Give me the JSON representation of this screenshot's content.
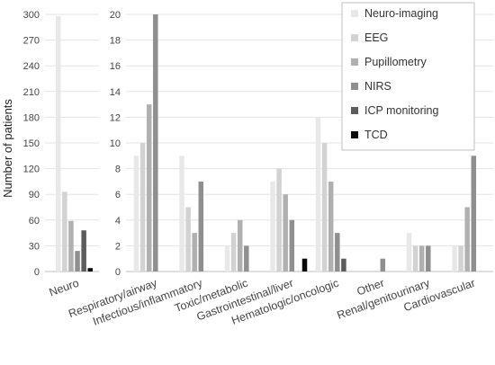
{
  "chart_data": {
    "type": "bar",
    "ylabel": "Number of patients",
    "xlabel": "",
    "title": "",
    "grid": "horizontal",
    "legend_position": "top-right",
    "series": [
      {
        "name": "Neuro-imaging",
        "color": "#e8e8e8"
      },
      {
        "name": "EEG",
        "color": "#d2d2d2"
      },
      {
        "name": "Pupillometry",
        "color": "#b0b0b0"
      },
      {
        "name": "NIRS",
        "color": "#8f8f8f"
      },
      {
        "name": "ICP monitoring",
        "color": "#5c5c5c"
      },
      {
        "name": "TCD",
        "color": "#0a0a0a"
      }
    ],
    "panels": [
      {
        "ylim": [
          0,
          300
        ],
        "yticks": [
          0,
          30,
          60,
          90,
          120,
          150,
          180,
          210,
          240,
          270,
          300
        ],
        "categories": [
          "Neuro"
        ],
        "values": [
          [
            298,
            93,
            59,
            24,
            48,
            4
          ]
        ]
      },
      {
        "ylim": [
          0,
          20
        ],
        "yticks": [
          0,
          2,
          4,
          6,
          8,
          10,
          12,
          14,
          16,
          18,
          20
        ],
        "categories": [
          "Respiratory/airway",
          "Infectious/inflammatory",
          "Toxic/metabolic",
          "Gastrointestinal/liver",
          "Hematologic/oncologic",
          "Other",
          "Renal/genitourinary",
          "Cardiovascular"
        ],
        "values": [
          [
            9,
            10,
            13,
            20,
            0,
            0
          ],
          [
            9,
            5,
            3,
            7,
            0,
            0
          ],
          [
            2,
            3,
            4,
            2,
            0,
            0
          ],
          [
            7,
            8,
            6,
            4,
            0,
            1
          ],
          [
            12,
            10,
            7,
            3,
            1,
            0
          ],
          [
            0,
            0,
            0,
            1,
            0,
            0
          ],
          [
            3,
            2,
            2,
            2,
            0,
            0
          ],
          [
            2,
            2,
            5,
            9,
            0,
            0
          ]
        ]
      }
    ]
  }
}
